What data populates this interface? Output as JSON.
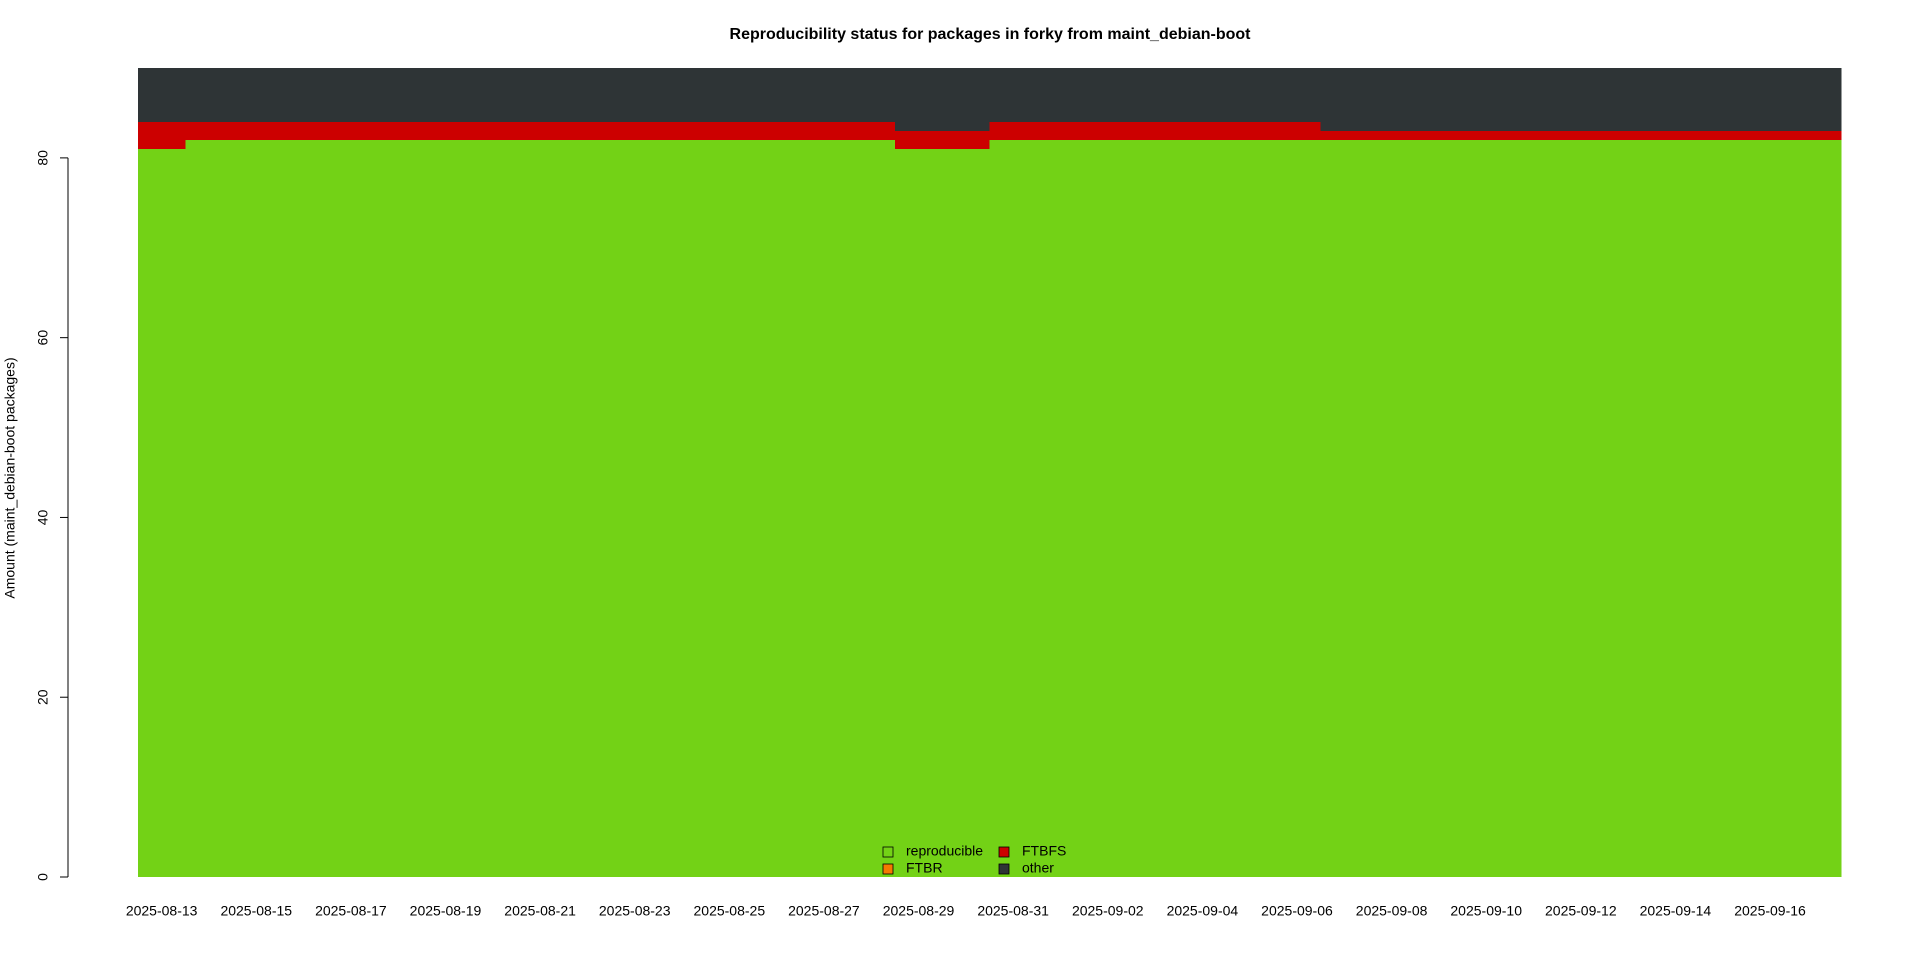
{
  "chart_data": {
    "type": "stacked_area",
    "title": "Reproducibility status for packages in forky from maint_debian-boot",
    "y_label": "Amount (maint_debian-boot packages)",
    "categories": [
      "2025-08-13",
      null,
      "2025-08-15",
      null,
      "2025-08-17",
      null,
      "2025-08-19",
      null,
      "2025-08-21",
      null,
      "2025-08-23",
      null,
      "2025-08-25",
      null,
      "2025-08-27",
      null,
      "2025-08-29",
      null,
      "2025-08-31",
      null,
      "2025-09-02",
      null,
      "2025-09-04",
      null,
      "2025-09-06",
      null,
      "2025-09-08",
      null,
      "2025-09-10",
      null,
      "2025-09-12",
      null,
      "2025-09-14",
      null,
      "2025-09-16",
      null
    ],
    "series": [
      {
        "name": "reproducible",
        "color": "#73d216",
        "values": [
          81,
          82,
          82,
          82,
          82,
          82,
          82,
          82,
          82,
          82,
          82,
          82,
          82,
          82,
          82,
          82,
          81,
          81,
          82,
          82,
          82,
          82,
          82,
          82,
          82,
          82,
          82,
          82,
          82,
          82,
          82,
          82,
          82,
          82,
          82,
          82
        ]
      },
      {
        "name": "FTBR",
        "color": "#f57900",
        "values": [
          0,
          0,
          0,
          0,
          0,
          0,
          0,
          0,
          0,
          0,
          0,
          0,
          0,
          0,
          0,
          0,
          0,
          0,
          0,
          0,
          0,
          0,
          0,
          0,
          0,
          0,
          0,
          0,
          0,
          0,
          0,
          0,
          0,
          0,
          0,
          0
        ]
      },
      {
        "name": "FTBFS",
        "color": "#cc0000",
        "values": [
          3,
          2,
          2,
          2,
          2,
          2,
          2,
          2,
          2,
          2,
          2,
          2,
          2,
          2,
          2,
          2,
          2,
          2,
          2,
          2,
          2,
          2,
          2,
          2,
          2,
          1,
          1,
          1,
          1,
          1,
          1,
          1,
          1,
          1,
          1,
          1
        ]
      },
      {
        "name": "other",
        "color": "#2e3436",
        "values": [
          6,
          6,
          6,
          6,
          6,
          6,
          6,
          6,
          6,
          6,
          6,
          6,
          6,
          6,
          6,
          6,
          7,
          7,
          6,
          6,
          6,
          6,
          6,
          6,
          6,
          7,
          7,
          7,
          7,
          7,
          7,
          7,
          7,
          7,
          7,
          7
        ]
      }
    ],
    "ylim": [
      0,
      90
    ],
    "yticks": [
      0,
      20,
      40,
      60,
      80
    ],
    "legend": "bottom"
  }
}
